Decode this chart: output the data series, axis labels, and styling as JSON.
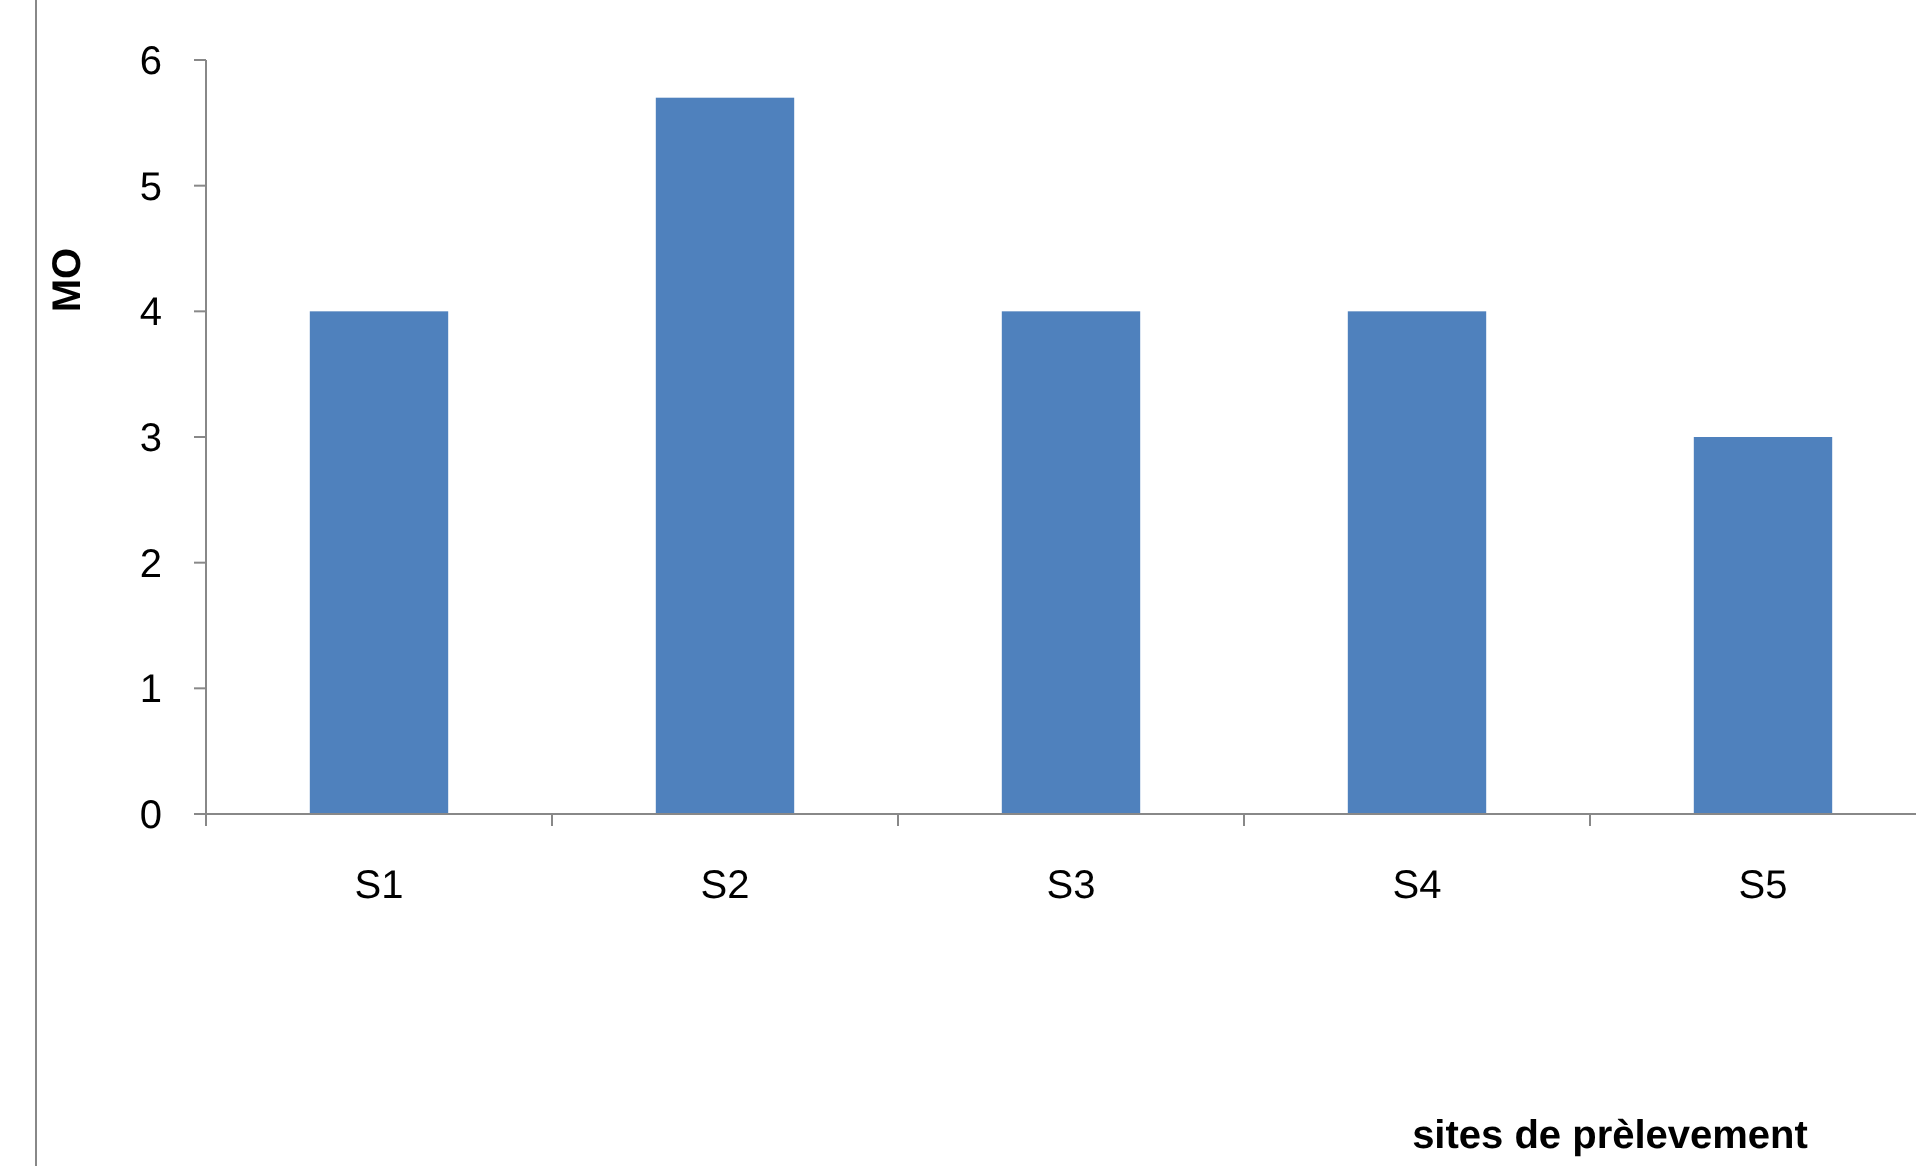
{
  "chart_data": {
    "type": "bar",
    "annotations": [
      "sites de prèlevement"
    ],
    "ylabel": "MO",
    "categories": [
      "S1",
      "S2",
      "S3",
      "S4",
      "S5"
    ],
    "values": [
      4,
      5.7,
      4,
      4,
      3
    ],
    "color": "#4f81bd",
    "ylim": [
      0,
      6
    ],
    "yticks": [
      0,
      1,
      2,
      3,
      4,
      5,
      6
    ],
    "grid": false
  }
}
